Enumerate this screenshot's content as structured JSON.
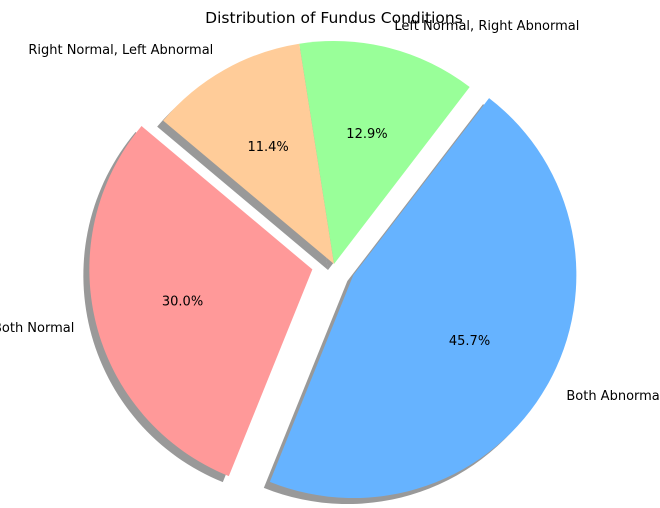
{
  "chart_data": {
    "type": "pie",
    "title": "Distribution of Fundus Conditions",
    "slices": [
      {
        "label": "Both Normal",
        "value": 30.0,
        "pct_label": "30.0%",
        "color": "#ff9999",
        "exploded": true
      },
      {
        "label": "Both Abnormal",
        "value": 45.7,
        "pct_label": "45.7%",
        "color": "#66b3ff",
        "exploded": true
      },
      {
        "label": "Left Normal, Right Abnormal",
        "value": 12.9,
        "pct_label": "12.9%",
        "color": "#99ff99",
        "exploded": false
      },
      {
        "label": "Right Normal, Left Abnormal",
        "value": 11.4,
        "pct_label": "11.4%",
        "color": "#ffcc99",
        "exploded": false
      }
    ],
    "start_angle_deg": 140,
    "direction": "counterclockwise",
    "shadow": true,
    "legend": "none",
    "grid": false
  }
}
